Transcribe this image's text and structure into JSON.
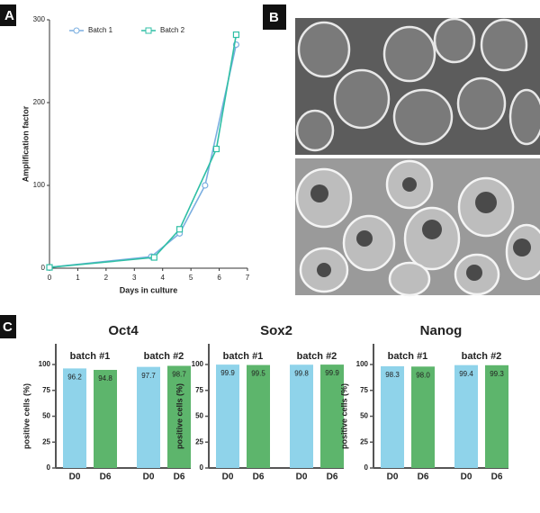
{
  "panel_labels": [
    "A",
    "B",
    "C"
  ],
  "chart_data": [
    {
      "type": "line",
      "xlabel": "Days in culture",
      "ylabel": "Amplification factor",
      "xlim": [
        0,
        7
      ],
      "xticks": [
        0,
        1,
        2,
        3,
        4,
        5,
        6,
        7
      ],
      "ylim": [
        0,
        300
      ],
      "yticks": [
        0,
        100,
        200,
        300
      ],
      "series": [
        {
          "name": "Batch  1",
          "color": "#7aaee0",
          "marker": "circle",
          "x": [
            0,
            3.6,
            4.6,
            5.5,
            6.6
          ],
          "values": [
            1,
            14,
            42,
            100,
            270
          ]
        },
        {
          "name": "Batch  2",
          "color": "#2fbfa5",
          "marker": "square",
          "x": [
            0,
            3.7,
            4.6,
            5.9,
            6.6
          ],
          "values": [
            1,
            13,
            47,
            144,
            282
          ]
        }
      ]
    },
    {
      "type": "bar",
      "title": "Oct4",
      "ylabel": "positive cells (%)",
      "groups": [
        "batch #1",
        "batch #2"
      ],
      "categories": [
        "D0",
        "D6",
        "D0",
        "D6"
      ],
      "values": [
        96.2,
        94.8,
        97.7,
        98.7
      ],
      "value_labels": [
        "96.2",
        "94.8",
        "97.7",
        "98.7"
      ],
      "colors": [
        "#8fd3ea",
        "#5db56c",
        "#8fd3ea",
        "#5db56c"
      ],
      "ylim": [
        0,
        120
      ],
      "yticks": [
        0,
        25,
        50,
        75,
        100
      ]
    },
    {
      "type": "bar",
      "title": "Sox2",
      "ylabel": "positive cells (%)",
      "groups": [
        "batch #1",
        "batch #2"
      ],
      "categories": [
        "D0",
        "D6",
        "D0",
        "D6"
      ],
      "values": [
        99.9,
        99.5,
        99.8,
        99.9
      ],
      "value_labels": [
        "99.9",
        "99.5",
        "99.8",
        "99.9"
      ],
      "colors": [
        "#8fd3ea",
        "#5db56c",
        "#8fd3ea",
        "#5db56c"
      ],
      "ylim": [
        0,
        120
      ],
      "yticks": [
        0,
        25,
        50,
        75,
        100
      ]
    },
    {
      "type": "bar",
      "title": "Nanog",
      "ylabel": "positive cells (%)",
      "groups": [
        "batch #1",
        "batch #2"
      ],
      "categories": [
        "D0",
        "D6",
        "D0",
        "D6"
      ],
      "values": [
        98.3,
        98.0,
        99.4,
        99.3
      ],
      "value_labels": [
        "98.3",
        "98.0",
        "99.4",
        "99.3"
      ],
      "colors": [
        "#8fd3ea",
        "#5db56c",
        "#8fd3ea",
        "#5db56c"
      ],
      "ylim": [
        0,
        120
      ],
      "yticks": [
        0,
        25,
        50,
        75,
        100
      ]
    }
  ]
}
